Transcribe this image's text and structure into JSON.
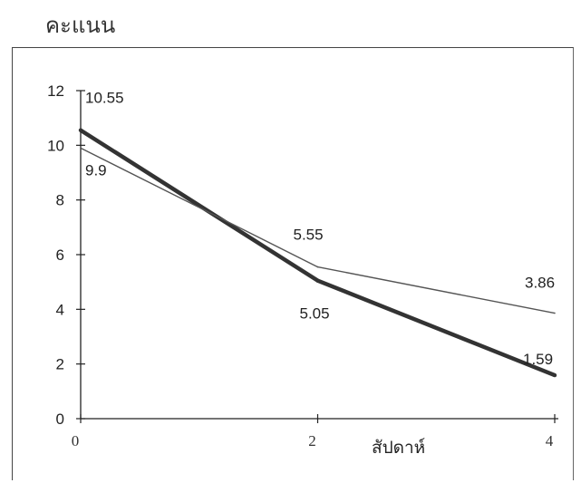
{
  "chart_data": {
    "type": "line",
    "ylabel": "คะแนน",
    "xlabel": "สัปดาห์",
    "x": [
      0,
      2,
      4
    ],
    "xticks": [
      "0",
      "2",
      "4"
    ],
    "yticks": [
      "0",
      "2",
      "4",
      "6",
      "8",
      "10",
      "12"
    ],
    "ylim": [
      0,
      12
    ],
    "xlim": [
      0,
      4
    ],
    "grid": false,
    "series": [
      {
        "values": [
          10.55,
          5.05,
          1.59
        ],
        "labels": [
          "10.55",
          "5.05",
          "1.59"
        ],
        "color": "#333333",
        "style": "thick"
      },
      {
        "values": [
          9.9,
          5.55,
          3.86
        ],
        "labels": [
          "9.9",
          "5.55",
          "3.86"
        ],
        "color": "#555555",
        "style": "thin"
      }
    ]
  }
}
